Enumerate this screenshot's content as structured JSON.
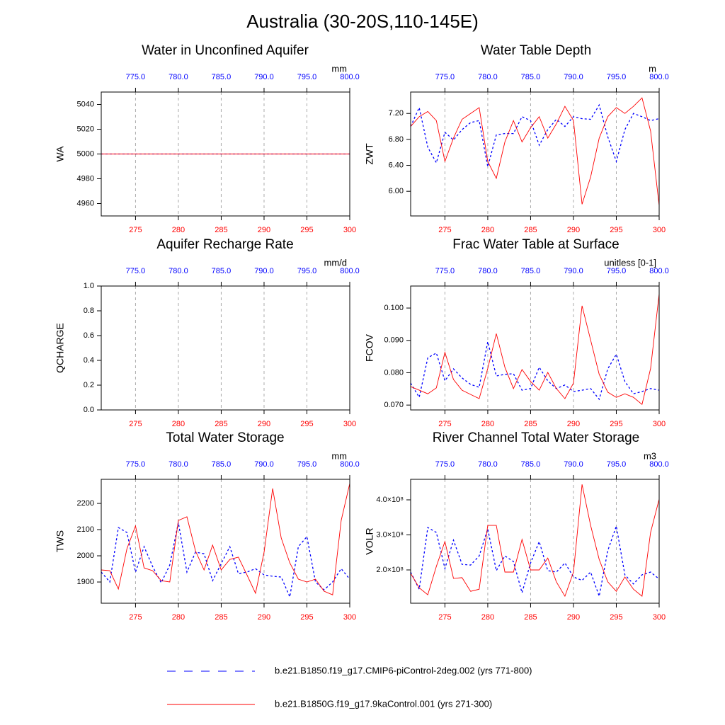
{
  "title": "Australia (30-20S,110-145E)",
  "axis_colors": {
    "x": "#ff0000",
    "x2": "#0000ff"
  },
  "legend": [
    {
      "label": "b.e21.B1850.f19_g17.CMIP6-piControl-2deg.002 (yrs 771-800)",
      "color": "#0000ff",
      "dash": true
    },
    {
      "label": "b.e21.B1850G.f19_g17.9kaControl.001 (yrs 271-300)",
      "color": "#ff0000",
      "dash": false
    }
  ],
  "chart_data": [
    {
      "type": "line",
      "title": "Water in Unconfined Aquifer",
      "ylabel": "WA",
      "units": "mm",
      "grid": true,
      "x": [
        271,
        272,
        273,
        274,
        275,
        276,
        277,
        278,
        279,
        280,
        281,
        282,
        283,
        284,
        285,
        286,
        287,
        288,
        289,
        290,
        291,
        292,
        293,
        294,
        295,
        296,
        297,
        298,
        299,
        300
      ],
      "x2": [
        771,
        772,
        773,
        774,
        775,
        776,
        777,
        778,
        779,
        780,
        781,
        782,
        783,
        784,
        785,
        786,
        787,
        788,
        789,
        790,
        791,
        792,
        793,
        794,
        795,
        796,
        797,
        798,
        799,
        800
      ],
      "xlim": [
        271,
        300
      ],
      "xticks": [
        275,
        280,
        285,
        290,
        295,
        300
      ],
      "x2lim": [
        771,
        800
      ],
      "x2ticks": [
        {
          "value": 775,
          "label": "775.0"
        },
        {
          "value": 780,
          "label": "780.0"
        },
        {
          "value": 785,
          "label": "785.0"
        },
        {
          "value": 790,
          "label": "790.0"
        },
        {
          "value": 795,
          "label": "795.0"
        },
        {
          "value": 800,
          "label": "800.0"
        }
      ],
      "ylim": [
        4950,
        5050
      ],
      "yticks": [
        4960,
        4980,
        5000,
        5020,
        5040
      ],
      "series": [
        {
          "color": "#0000ff",
          "dash": true,
          "axis": "x2",
          "values": [
            5000,
            5000,
            5000,
            5000,
            5000,
            5000,
            5000,
            5000,
            5000,
            5000,
            5000,
            5000,
            5000,
            5000,
            5000,
            5000,
            5000,
            5000,
            5000,
            5000,
            5000,
            5000,
            5000,
            5000,
            5000,
            5000,
            5000,
            5000,
            5000,
            5000
          ]
        },
        {
          "color": "#ff0000",
          "dash": false,
          "axis": "x",
          "values": [
            5000,
            5000,
            5000,
            5000,
            5000,
            5000,
            5000,
            5000,
            5000,
            5000,
            5000,
            5000,
            5000,
            5000,
            5000,
            5000,
            5000,
            5000,
            5000,
            5000,
            5000,
            5000,
            5000,
            5000,
            5000,
            5000,
            5000,
            5000,
            5000,
            5000
          ]
        }
      ]
    },
    {
      "type": "line",
      "title": "Water Table Depth",
      "ylabel": "ZWT",
      "units": "m",
      "grid": true,
      "x": [
        271,
        272,
        273,
        274,
        275,
        276,
        277,
        278,
        279,
        280,
        281,
        282,
        283,
        284,
        285,
        286,
        287,
        288,
        289,
        290,
        291,
        292,
        293,
        294,
        295,
        296,
        297,
        298,
        299,
        300
      ],
      "x2": [
        771,
        772,
        773,
        774,
        775,
        776,
        777,
        778,
        779,
        780,
        781,
        782,
        783,
        784,
        785,
        786,
        787,
        788,
        789,
        790,
        791,
        792,
        793,
        794,
        795,
        796,
        797,
        798,
        799,
        800
      ],
      "xlim": [
        271,
        300
      ],
      "xticks": [
        275,
        280,
        285,
        290,
        295,
        300
      ],
      "x2lim": [
        771,
        800
      ],
      "x2ticks": [
        {
          "value": 775,
          "label": "775.0"
        },
        {
          "value": 780,
          "label": "780.0"
        },
        {
          "value": 785,
          "label": "785.0"
        },
        {
          "value": 790,
          "label": "790.0"
        },
        {
          "value": 795,
          "label": "795.0"
        },
        {
          "value": 800,
          "label": "800.0"
        }
      ],
      "ylim": [
        5.62,
        7.53
      ],
      "yticks": [
        {
          "value": 6,
          "label": "6.00"
        },
        {
          "value": 6.4,
          "label": "6.40"
        },
        {
          "value": 6.8,
          "label": "6.80"
        },
        {
          "value": 7.2,
          "label": "7.20"
        }
      ],
      "series": [
        {
          "color": "#0000ff",
          "dash": true,
          "axis": "x2",
          "values": [
            7.0,
            7.29,
            6.68,
            6.44,
            6.91,
            6.79,
            6.95,
            7.06,
            7.09,
            6.38,
            6.87,
            6.89,
            6.89,
            7.15,
            7.09,
            6.71,
            6.95,
            7.11,
            7.0,
            7.15,
            7.12,
            7.11,
            7.33,
            6.84,
            6.46,
            6.95,
            7.2,
            7.15,
            7.09,
            7.12
          ]
        },
        {
          "color": "#ff0000",
          "dash": false,
          "axis": "x",
          "values": [
            7.0,
            7.15,
            7.23,
            7.09,
            6.46,
            6.82,
            7.11,
            7.2,
            7.29,
            6.46,
            6.2,
            6.76,
            7.09,
            6.76,
            6.98,
            7.15,
            6.82,
            7.04,
            7.31,
            7.09,
            5.8,
            6.22,
            6.82,
            7.15,
            7.29,
            7.2,
            7.31,
            7.44,
            6.93,
            5.78
          ]
        }
      ]
    },
    {
      "type": "line",
      "title": "Aquifer Recharge Rate",
      "ylabel": "QCHARGE",
      "units": "mm/d",
      "grid": true,
      "x": [
        271,
        272,
        273,
        274,
        275,
        276,
        277,
        278,
        279,
        280,
        281,
        282,
        283,
        284,
        285,
        286,
        287,
        288,
        289,
        290,
        291,
        292,
        293,
        294,
        295,
        296,
        297,
        298,
        299,
        300
      ],
      "x2": [
        771,
        772,
        773,
        774,
        775,
        776,
        777,
        778,
        779,
        780,
        781,
        782,
        783,
        784,
        785,
        786,
        787,
        788,
        789,
        790,
        791,
        792,
        793,
        794,
        795,
        796,
        797,
        798,
        799,
        800
      ],
      "xlim": [
        271,
        300
      ],
      "xticks": [
        275,
        280,
        285,
        290,
        295,
        300
      ],
      "x2lim": [
        771,
        800
      ],
      "x2ticks": [
        {
          "value": 775,
          "label": "775.0"
        },
        {
          "value": 780,
          "label": "780.0"
        },
        {
          "value": 785,
          "label": "785.0"
        },
        {
          "value": 790,
          "label": "790.0"
        },
        {
          "value": 795,
          "label": "795.0"
        },
        {
          "value": 800,
          "label": "800.0"
        }
      ],
      "ylim": [
        0,
        1
      ],
      "yticks": [
        {
          "value": 0,
          "label": "0.0"
        },
        {
          "value": 0.2,
          "label": "0.2"
        },
        {
          "value": 0.4,
          "label": "0.4"
        },
        {
          "value": 0.6,
          "label": "0.6"
        },
        {
          "value": 0.8,
          "label": "0.8"
        },
        {
          "value": 1,
          "label": "1.0"
        }
      ],
      "series": []
    },
    {
      "type": "line",
      "title": "Frac Water Table at Surface",
      "ylabel": "FCOV",
      "units": "unitless [0-1]",
      "grid": true,
      "x": [
        271,
        272,
        273,
        274,
        275,
        276,
        277,
        278,
        279,
        280,
        281,
        282,
        283,
        284,
        285,
        286,
        287,
        288,
        289,
        290,
        291,
        292,
        293,
        294,
        295,
        296,
        297,
        298,
        299,
        300
      ],
      "x2": [
        771,
        772,
        773,
        774,
        775,
        776,
        777,
        778,
        779,
        780,
        781,
        782,
        783,
        784,
        785,
        786,
        787,
        788,
        789,
        790,
        791,
        792,
        793,
        794,
        795,
        796,
        797,
        798,
        799,
        800
      ],
      "xlim": [
        271,
        300
      ],
      "xticks": [
        275,
        280,
        285,
        290,
        295,
        300
      ],
      "x2lim": [
        771,
        800
      ],
      "x2ticks": [
        {
          "value": 775,
          "label": "775.0"
        },
        {
          "value": 780,
          "label": "780.0"
        },
        {
          "value": 785,
          "label": "785.0"
        },
        {
          "value": 790,
          "label": "790.0"
        },
        {
          "value": 795,
          "label": "795.0"
        },
        {
          "value": 800,
          "label": "800.0"
        }
      ],
      "ylim": [
        0.0685,
        0.1068
      ],
      "yticks": [
        {
          "value": 0.07,
          "label": "0.070"
        },
        {
          "value": 0.08,
          "label": "0.080"
        },
        {
          "value": 0.09,
          "label": "0.090"
        },
        {
          "value": 0.1,
          "label": "0.100"
        }
      ],
      "series": [
        {
          "color": "#0000ff",
          "dash": true,
          "axis": "x2",
          "values": [
            0.0768,
            0.0724,
            0.0846,
            0.0861,
            0.0775,
            0.0812,
            0.0784,
            0.0764,
            0.0755,
            0.0896,
            0.079,
            0.0795,
            0.0797,
            0.0746,
            0.0751,
            0.0817,
            0.0775,
            0.0751,
            0.0762,
            0.0742,
            0.0746,
            0.0751,
            0.0718,
            0.0812,
            0.0857,
            0.0773,
            0.0735,
            0.0742,
            0.0751,
            0.0746
          ]
        },
        {
          "color": "#ff0000",
          "dash": false,
          "axis": "x",
          "values": [
            0.0757,
            0.0746,
            0.0735,
            0.0753,
            0.0863,
            0.0779,
            0.0746,
            0.0733,
            0.072,
            0.0813,
            0.0921,
            0.0817,
            0.0751,
            0.081,
            0.0773,
            0.0746,
            0.0801,
            0.0751,
            0.072,
            0.0768,
            0.1007,
            0.0901,
            0.0795,
            0.074,
            0.0724,
            0.0735,
            0.0724,
            0.0702,
            0.0813,
            0.1044
          ]
        }
      ]
    },
    {
      "type": "line",
      "title": "Total Water Storage",
      "ylabel": "TWS",
      "units": "mm",
      "grid": true,
      "x": [
        271,
        272,
        273,
        274,
        275,
        276,
        277,
        278,
        279,
        280,
        281,
        282,
        283,
        284,
        285,
        286,
        287,
        288,
        289,
        290,
        291,
        292,
        293,
        294,
        295,
        296,
        297,
        298,
        299,
        300
      ],
      "x2": [
        771,
        772,
        773,
        774,
        775,
        776,
        777,
        778,
        779,
        780,
        781,
        782,
        783,
        784,
        785,
        786,
        787,
        788,
        789,
        790,
        791,
        792,
        793,
        794,
        795,
        796,
        797,
        798,
        799,
        800
      ],
      "xlim": [
        271,
        300
      ],
      "xticks": [
        275,
        280,
        285,
        290,
        295,
        300
      ],
      "x2lim": [
        771,
        800
      ],
      "x2ticks": [
        {
          "value": 775,
          "label": "775.0"
        },
        {
          "value": 780,
          "label": "780.0"
        },
        {
          "value": 785,
          "label": "785.0"
        },
        {
          "value": 790,
          "label": "790.0"
        },
        {
          "value": 795,
          "label": "795.0"
        },
        {
          "value": 800,
          "label": "800.0"
        }
      ],
      "ylim": [
        1819,
        2292
      ],
      "yticks": [
        1900,
        2000,
        2100,
        2200
      ],
      "series": [
        {
          "color": "#0000ff",
          "dash": true,
          "axis": "x2",
          "values": [
            1938,
            1900,
            2108,
            2089,
            1938,
            2035,
            1959,
            1897,
            1965,
            2127,
            1938,
            2014,
            2008,
            1905,
            1970,
            2035,
            1932,
            1938,
            1951,
            1927,
            1922,
            1919,
            1843,
            2035,
            2073,
            1900,
            1870,
            1900,
            1951,
            1911
          ]
        },
        {
          "color": "#ff0000",
          "dash": false,
          "axis": "x",
          "values": [
            1946,
            1943,
            1873,
            2027,
            2114,
            1954,
            1943,
            1905,
            1900,
            2135,
            2149,
            2019,
            1946,
            2041,
            1946,
            1986,
            1995,
            1927,
            1857,
            2014,
            2257,
            2068,
            1973,
            1911,
            1900,
            1911,
            1865,
            1851,
            2135,
            2276
          ]
        }
      ]
    },
    {
      "type": "line",
      "title": "River Channel Total Water Storage",
      "ylabel": "VOLR",
      "units": "m3",
      "grid": true,
      "x": [
        271,
        272,
        273,
        274,
        275,
        276,
        277,
        278,
        279,
        280,
        281,
        282,
        283,
        284,
        285,
        286,
        287,
        288,
        289,
        290,
        291,
        292,
        293,
        294,
        295,
        296,
        297,
        298,
        299,
        300
      ],
      "x2": [
        771,
        772,
        773,
        774,
        775,
        776,
        777,
        778,
        779,
        780,
        781,
        782,
        783,
        784,
        785,
        786,
        787,
        788,
        789,
        790,
        791,
        792,
        793,
        794,
        795,
        796,
        797,
        798,
        799,
        800
      ],
      "xlim": [
        271,
        300
      ],
      "xticks": [
        275,
        280,
        285,
        290,
        295,
        300
      ],
      "x2lim": [
        771,
        800
      ],
      "x2ticks": [
        {
          "value": 775,
          "label": "775.0"
        },
        {
          "value": 780,
          "label": "780.0"
        },
        {
          "value": 785,
          "label": "785.0"
        },
        {
          "value": 790,
          "label": "790.0"
        },
        {
          "value": 795,
          "label": "795.0"
        },
        {
          "value": 800,
          "label": "800.0"
        }
      ],
      "ylim": [
        105000000,
        458600000
      ],
      "yticks": [
        {
          "value": 200000000,
          "label": "2.0×10⁸"
        },
        {
          "value": 300000000,
          "label": "3.0×10⁸"
        },
        {
          "value": 400000000,
          "label": "4.0×10⁸"
        }
      ],
      "series": [
        {
          "color": "#0000ff",
          "dash": true,
          "axis": "x2",
          "values": [
            194000000,
            145000000,
            321000000,
            307000000,
            204000000,
            285000000,
            216000000,
            214000000,
            240000000,
            317000000,
            198000000,
            240000000,
            224000000,
            135000000,
            220000000,
            281000000,
            198000000,
            194000000,
            220000000,
            180000000,
            170000000,
            194000000,
            125000000,
            255000000,
            325000000,
            186000000,
            160000000,
            186000000,
            194000000,
            174000000
          ]
        },
        {
          "color": "#ff0000",
          "dash": false,
          "axis": "x",
          "values": [
            190000000,
            149000000,
            129000000,
            210000000,
            281000000,
            176000000,
            178000000,
            139000000,
            145000000,
            327000000,
            327000000,
            194000000,
            194000000,
            287000000,
            200000000,
            200000000,
            234000000,
            166000000,
            125000000,
            194000000,
            444000000,
            327000000,
            230000000,
            166000000,
            139000000,
            180000000,
            145000000,
            125000000,
            307000000,
            402000000
          ]
        }
      ]
    }
  ]
}
